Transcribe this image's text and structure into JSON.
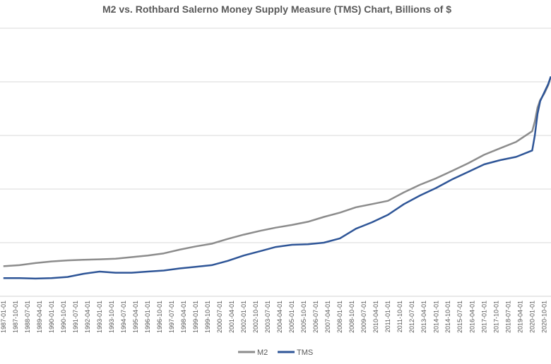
{
  "chart_data": {
    "type": "line",
    "title": "M2 vs. Rothbard Salerno Money Supply Measure (TMS) Chart, Billions of $",
    "xlabel": "",
    "ylabel": "",
    "ylim": [
      0,
      25000
    ],
    "grid": true,
    "legend_position": "bottom",
    "x_ticks": [
      "1987-01-01",
      "1987-10-01",
      "1988-07-01",
      "1989-04-01",
      "1990-01-01",
      "1990-10-01",
      "1991-07-01",
      "1992-04-01",
      "1993-01-01",
      "1993-10-01",
      "1994-07-01",
      "1995-04-01",
      "1996-01-01",
      "1996-10-01",
      "1997-07-01",
      "1998-04-01",
      "1999-01-01",
      "1999-10-01",
      "2000-07-01",
      "2001-04-01",
      "2002-01-01",
      "2002-10-01",
      "2003-07-01",
      "2004-04-01",
      "2005-01-01",
      "2005-10-01",
      "2006-07-01",
      "2007-04-01",
      "2008-01-01",
      "2008-10-01",
      "2009-07-01",
      "2010-04-01",
      "2011-01-01",
      "2011-10-01",
      "2012-07-01",
      "2013-04-01",
      "2014-01-01",
      "2014-10-01",
      "2015-07-01",
      "2016-04-01",
      "2017-01-01",
      "2017-10-01",
      "2018-07-01",
      "2019-04-01",
      "2020-01-01",
      "2020-10-01"
    ],
    "series": [
      {
        "name": "M2",
        "color": "#8c8c8c",
        "x": [
          "1987-01-01",
          "1988-01-01",
          "1989-01-01",
          "1990-01-01",
          "1991-01-01",
          "1992-01-01",
          "1993-01-01",
          "1994-01-01",
          "1995-01-01",
          "1996-01-01",
          "1997-01-01",
          "1998-01-01",
          "1999-01-01",
          "2000-01-01",
          "2001-01-01",
          "2002-01-01",
          "2003-01-01",
          "2004-01-01",
          "2005-01-01",
          "2006-01-01",
          "2007-01-01",
          "2008-01-01",
          "2009-01-01",
          "2010-01-01",
          "2011-01-01",
          "2012-01-01",
          "2013-01-01",
          "2014-01-01",
          "2015-01-01",
          "2016-01-01",
          "2017-01-01",
          "2018-01-01",
          "2019-01-01",
          "2020-01-01",
          "2020-03-01",
          "2020-05-01",
          "2020-07-01",
          "2020-10-01",
          "2021-01-01",
          "2021-03-01"
        ],
        "values": [
          2800,
          2900,
          3100,
          3250,
          3350,
          3400,
          3450,
          3500,
          3650,
          3800,
          4000,
          4350,
          4650,
          4900,
          5350,
          5750,
          6100,
          6400,
          6650,
          6950,
          7400,
          7800,
          8300,
          8600,
          8900,
          9700,
          10400,
          11000,
          11700,
          12400,
          13200,
          13800,
          14400,
          15400,
          16300,
          17600,
          18300,
          18900,
          19700,
          20500
        ],
        "label": "M2"
      },
      {
        "name": "TMS",
        "color": "#2e5597",
        "x": [
          "1987-01-01",
          "1988-01-01",
          "1989-01-01",
          "1990-01-01",
          "1991-01-01",
          "1992-01-01",
          "1993-01-01",
          "1994-01-01",
          "1995-01-01",
          "1996-01-01",
          "1997-01-01",
          "1998-01-01",
          "1999-01-01",
          "2000-01-01",
          "2001-01-01",
          "2002-01-01",
          "2003-01-01",
          "2004-01-01",
          "2005-01-01",
          "2006-01-01",
          "2007-01-01",
          "2008-01-01",
          "2009-01-01",
          "2010-01-01",
          "2011-01-01",
          "2012-01-01",
          "2013-01-01",
          "2014-01-01",
          "2015-01-01",
          "2016-01-01",
          "2017-01-01",
          "2018-01-01",
          "2019-01-01",
          "2020-01-01",
          "2020-03-01",
          "2020-05-01",
          "2020-07-01",
          "2020-10-01",
          "2021-01-01",
          "2021-03-01"
        ],
        "values": [
          1700,
          1700,
          1650,
          1700,
          1800,
          2100,
          2300,
          2200,
          2200,
          2300,
          2400,
          2600,
          2750,
          2900,
          3300,
          3800,
          4200,
          4600,
          4800,
          4850,
          5000,
          5400,
          6300,
          6900,
          7600,
          8600,
          9400,
          10100,
          10900,
          11600,
          12300,
          12700,
          13000,
          13600,
          15000,
          17000,
          18200,
          19000,
          19800,
          20500
        ],
        "label": "TMS"
      }
    ]
  }
}
